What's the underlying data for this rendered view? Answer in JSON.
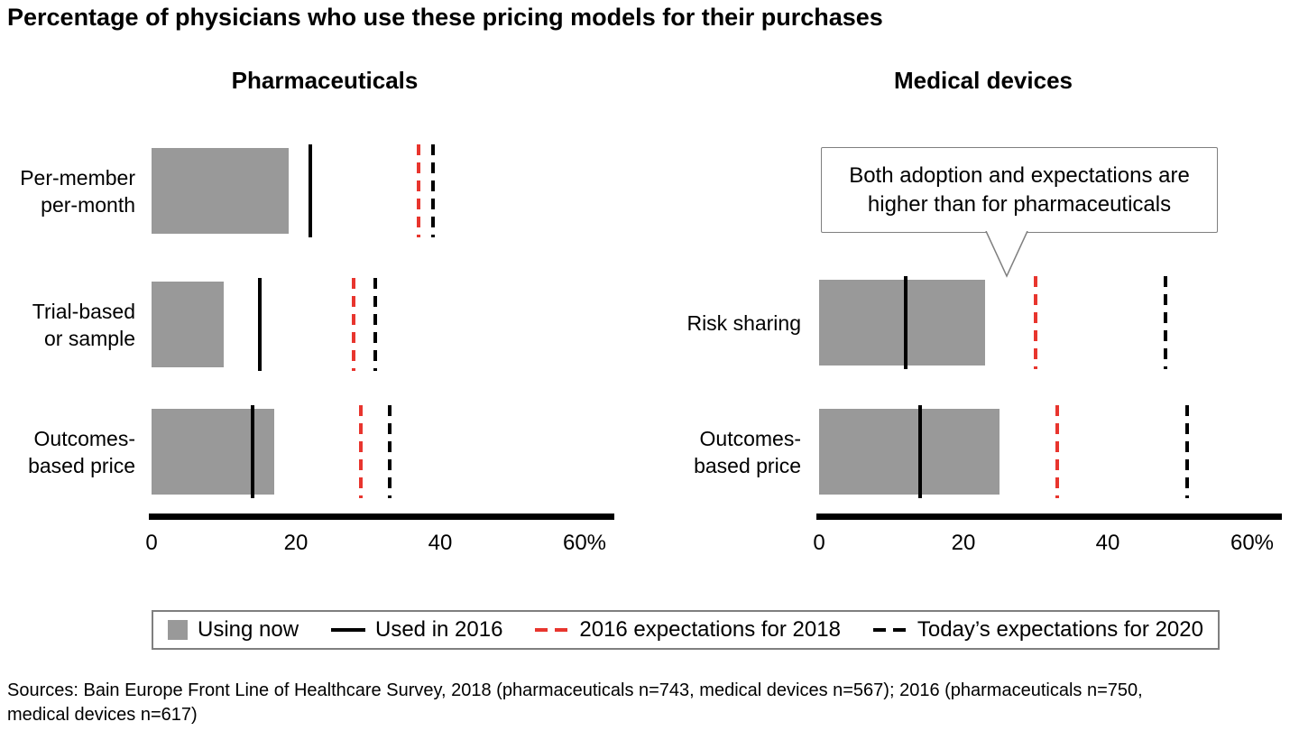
{
  "page": {
    "title": "Percentage of physicians who use these pricing models for their purchases",
    "sources_line1": "Sources: Bain Europe Front Line of Healthcare Survey, 2018 (pharmaceuticals n=743, medical devices n=567); 2016 (pharmaceuticals n=750,",
    "sources_line2": "medical devices n=617)"
  },
  "colors": {
    "bar_gray": "#999999",
    "solid_marker": "#000000",
    "red_dashed": "#e8352e",
    "black_dashed": "#000000",
    "box_border": "#7f7f7f"
  },
  "callout": {
    "text": "Both adoption and expectations are higher than for pharmaceuticals"
  },
  "legend": {
    "items": [
      {
        "swatch": "gray-square",
        "label": "Using now"
      },
      {
        "swatch": "solid-black-line",
        "label": "Used in 2016"
      },
      {
        "swatch": "red-dashed-line",
        "label": "2016 expectations for 2018"
      },
      {
        "swatch": "black-dashed-line",
        "label": "Today’s expectations for 2020"
      }
    ]
  },
  "chart_data": [
    {
      "type": "bar",
      "title": "Pharmaceuticals",
      "orientation": "horizontal",
      "categories": [
        "Per-member per-month",
        "Trial-based or sample",
        "Outcomes-based price"
      ],
      "category_lines": [
        [
          "Per-member",
          "per-month"
        ],
        [
          "Trial-based",
          "or sample"
        ],
        [
          "Outcomes-",
          "based price"
        ]
      ],
      "series": [
        {
          "name": "Using now",
          "style": "gray-bar",
          "values": [
            19,
            10,
            17
          ]
        },
        {
          "name": "Used in 2016",
          "style": "solid-black-line",
          "values": [
            22,
            15,
            14
          ]
        },
        {
          "name": "2016 expectations for 2018",
          "style": "red-dashed-line",
          "values": [
            37,
            28,
            29
          ]
        },
        {
          "name": "Today’s expectations for 2020",
          "style": "black-dashed-line",
          "values": [
            39,
            31,
            33
          ]
        }
      ],
      "xlim": [
        0,
        60
      ],
      "xticks": [
        0,
        20,
        40,
        60
      ],
      "xtick_labels": [
        "0",
        "20",
        "40",
        "60%"
      ],
      "grid": false
    },
    {
      "type": "bar",
      "title": "Medical devices",
      "orientation": "horizontal",
      "categories": [
        "Risk sharing",
        "Outcomes-based price"
      ],
      "category_lines": [
        [
          "Risk sharing"
        ],
        [
          "Outcomes-",
          "based price"
        ]
      ],
      "series": [
        {
          "name": "Using now",
          "style": "gray-bar",
          "values": [
            23,
            25
          ]
        },
        {
          "name": "Used in 2016",
          "style": "solid-black-line",
          "values": [
            12,
            14
          ]
        },
        {
          "name": "2016 expectations for 2018",
          "style": "red-dashed-line",
          "values": [
            30,
            33
          ]
        },
        {
          "name": "Today’s expectations for 2020",
          "style": "black-dashed-line",
          "values": [
            48,
            51
          ]
        }
      ],
      "xlim": [
        0,
        60
      ],
      "xticks": [
        0,
        20,
        40,
        60
      ],
      "xtick_labels": [
        "0",
        "20",
        "40",
        "60%"
      ],
      "grid": false
    }
  ]
}
